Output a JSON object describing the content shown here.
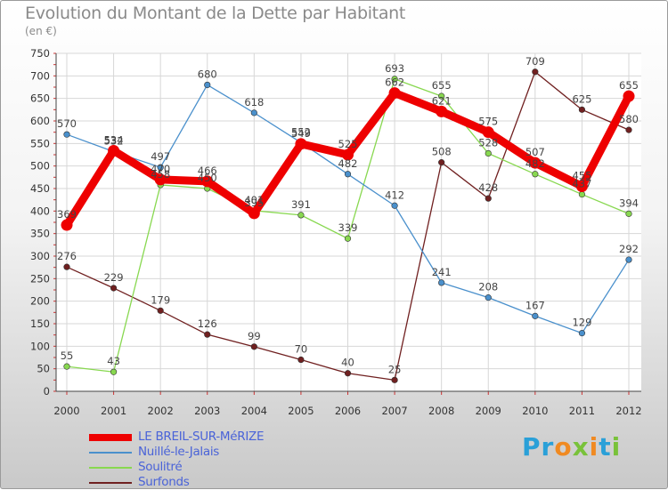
{
  "title": "Evolution du Montant de la Dette par Habitant",
  "subtitle": "(en €)",
  "logo": {
    "text": "Proxiti",
    "colors": [
      "#2aa0d8",
      "#f08a22",
      "#79c23a"
    ]
  },
  "chart_data": {
    "type": "line",
    "x": [
      "2000",
      "2001",
      "2002",
      "2003",
      "2004",
      "2005",
      "2006",
      "2007",
      "2008",
      "2009",
      "2010",
      "2011",
      "2012"
    ],
    "ylim": [
      0,
      750
    ],
    "yticks": [
      0,
      50,
      100,
      150,
      200,
      250,
      300,
      350,
      400,
      450,
      500,
      550,
      600,
      650,
      700,
      750
    ],
    "grid": true,
    "legend_position": "bottom-left",
    "series": [
      {
        "name": "LE BREIL-SUR-MéRIZE",
        "color": "#ee0000",
        "values": [
          369,
          534,
          470,
          466,
          395,
          549,
          525,
          662,
          621,
          575,
          507,
          455,
          655
        ]
      },
      {
        "name": "Nuillé-le-Jalais",
        "color": "#4a90cc",
        "values": [
          570,
          532,
          497,
          680,
          618,
          552,
          482,
          412,
          241,
          208,
          167,
          129,
          292
        ]
      },
      {
        "name": "Soulitré",
        "color": "#88d850",
        "values": [
          55,
          43,
          458,
          450,
          401,
          391,
          339,
          693,
          655,
          528,
          482,
          437,
          394
        ]
      },
      {
        "name": "Surfonds",
        "color": "#702020",
        "values": [
          276,
          229,
          179,
          126,
          99,
          70,
          40,
          25,
          508,
          428,
          709,
          625,
          580
        ]
      }
    ]
  }
}
